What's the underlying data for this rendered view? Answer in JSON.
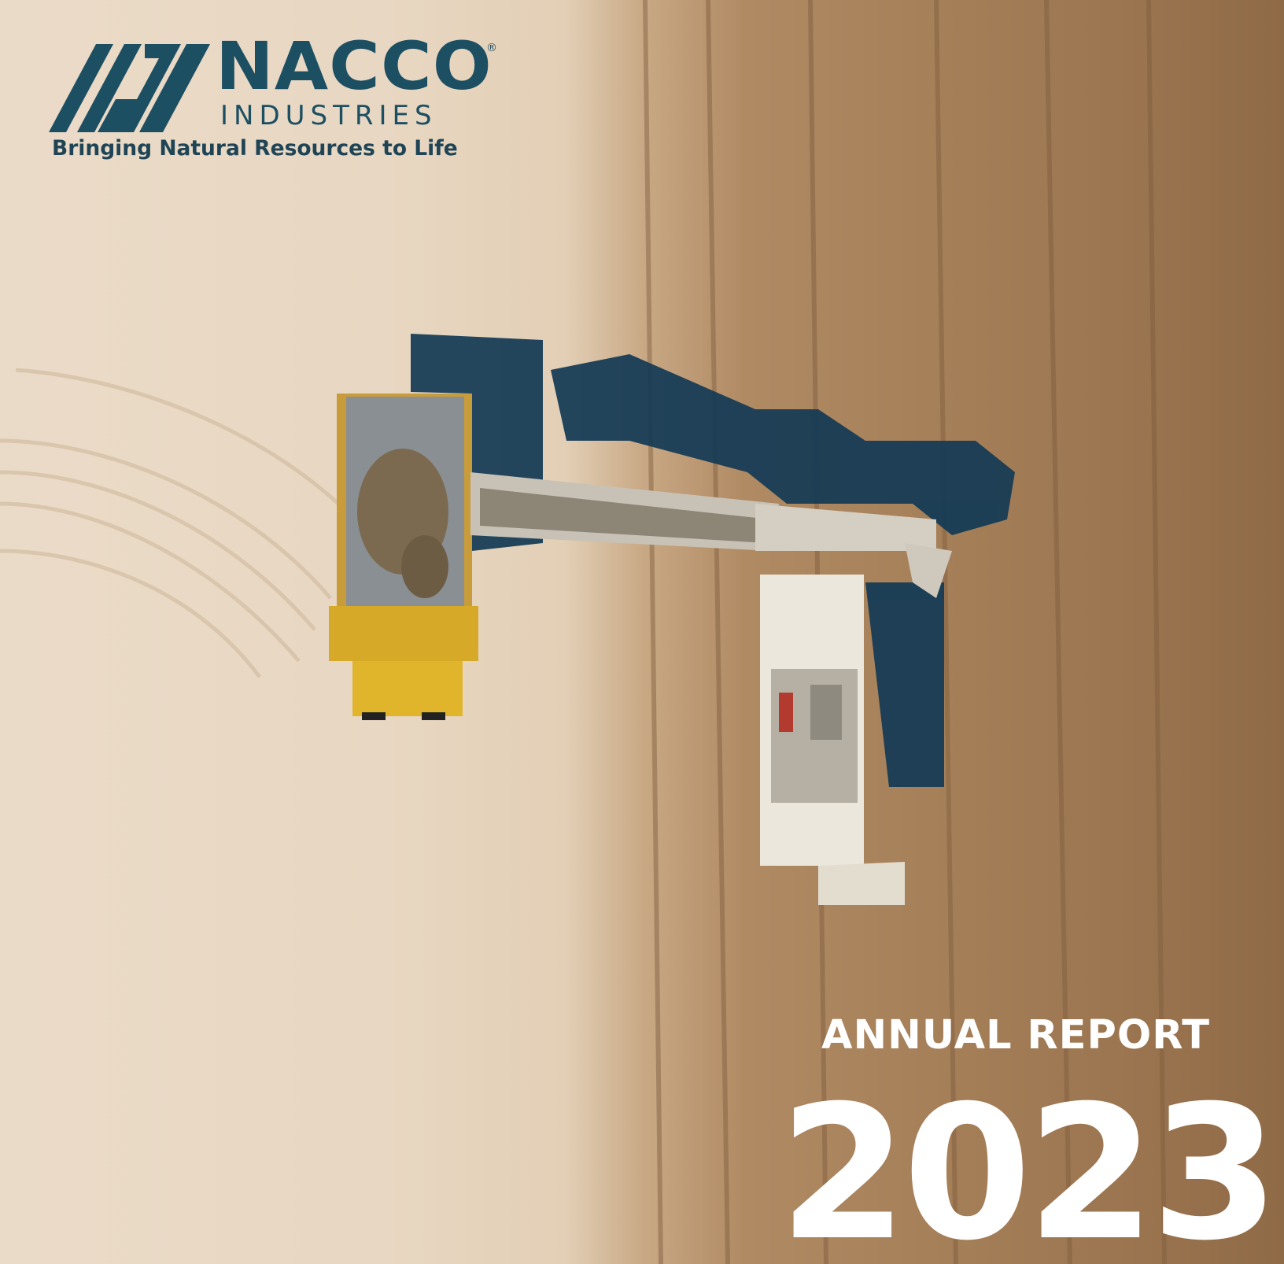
{
  "brand": {
    "name": "NACCO",
    "registered_mark": "®",
    "subtitle": "INDUSTRIES",
    "tagline": "Bringing Natural Resources to Life",
    "color": "#1d4f63"
  },
  "cover": {
    "label": "ANNUAL REPORT",
    "year": "2023",
    "text_color": "#ffffff"
  }
}
